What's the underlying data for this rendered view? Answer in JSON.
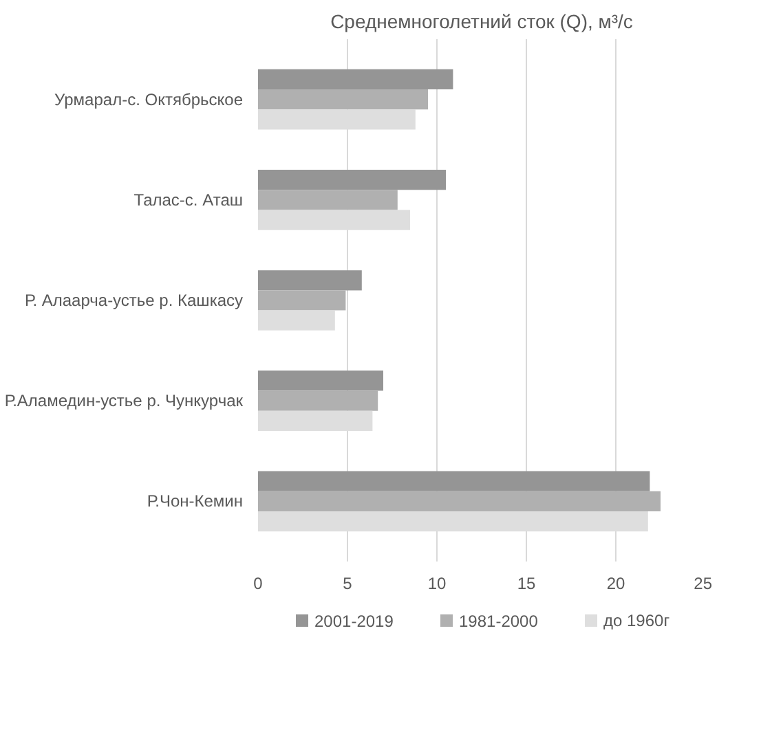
{
  "chart_data": {
    "type": "bar",
    "orientation": "horizontal",
    "title": "Среднемноголетний сток (Q), м³/с",
    "categories": [
      "Урмарал-с. Октябрьское",
      "Талас-с. Аташ",
      "Р. Алаарча-устье р. Кашкасу",
      "Р.Аламедин-устье р. Чункурчак",
      "Р.Чон-Кемин"
    ],
    "series": [
      {
        "name": "2001-2019",
        "color": "#959595",
        "values": [
          10.9,
          10.5,
          5.8,
          7.0,
          21.9
        ]
      },
      {
        "name": "1981-2000",
        "color": "#b0b0b0",
        "values": [
          9.5,
          7.8,
          4.9,
          6.7,
          22.5
        ]
      },
      {
        "name": "до 1960г",
        "color": "#dedede",
        "values": [
          8.8,
          8.5,
          4.3,
          6.4,
          21.8
        ]
      }
    ],
    "xlim": [
      0,
      25
    ],
    "xticks": [
      0,
      5,
      10,
      15,
      20,
      25
    ],
    "grid": "x",
    "legend": "bottom"
  }
}
